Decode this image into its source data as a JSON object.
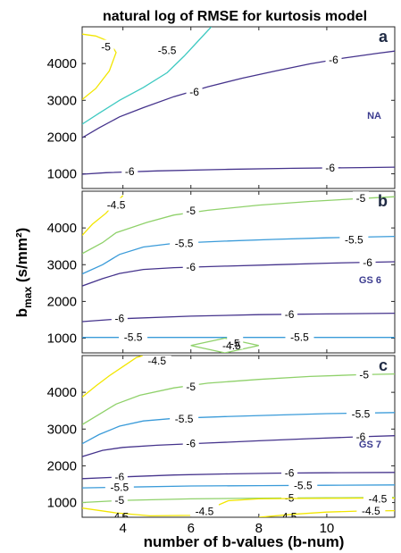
{
  "title": "natural log of RMSE for kurtosis model",
  "xlabel": "number of b-values (b-num)",
  "ylabel_main": "b",
  "ylabel_sub": "max",
  "ylabel_rest": " (s/mm²)",
  "colors": {
    "-6": "#45338c",
    "-5.5": "#3a9bd9",
    "-5": "#8fd16a",
    "-4.5": "#f2e600",
    "-5.5_teal": "#3ec9c1",
    "panel_tag": "#3b3b8f"
  },
  "chart_data": [
    {
      "type": "contour",
      "panel": "a",
      "tag": "NA",
      "xlim": [
        2.8,
        12
      ],
      "ylim": [
        600,
        5000
      ],
      "xticks": [
        4,
        6,
        8,
        10
      ],
      "yticks": [
        1000,
        2000,
        3000,
        4000
      ],
      "contours": [
        {
          "level": "-6",
          "color_key": "-6",
          "points": [
            [
              2.8,
              990
            ],
            [
              3.5,
              1030
            ],
            [
              5,
              1080
            ],
            [
              7,
              1120
            ],
            [
              9,
              1150
            ],
            [
              11,
              1170
            ],
            [
              12,
              1180
            ]
          ],
          "labels": [
            [
              4.2,
              1060
            ],
            [
              10.1,
              1160
            ]
          ]
        },
        {
          "level": "-6",
          "color_key": "-6",
          "points": [
            [
              2.8,
              1980
            ],
            [
              3.3,
              2250
            ],
            [
              3.9,
              2550
            ],
            [
              4.6,
              2800
            ],
            [
              5.5,
              3100
            ],
            [
              6.5,
              3370
            ],
            [
              7.5,
              3600
            ],
            [
              8.5,
              3800
            ],
            [
              9.5,
              3990
            ],
            [
              10.5,
              4150
            ],
            [
              11.5,
              4280
            ],
            [
              12,
              4340
            ]
          ],
          "labels": [
            [
              6.1,
              3220
            ],
            [
              10.2,
              4100
            ]
          ]
        },
        {
          "level": "-5.5",
          "color_key": "-5.5_teal",
          "points": [
            [
              2.8,
              2350
            ],
            [
              3.3,
              2650
            ],
            [
              3.9,
              3000
            ],
            [
              4.6,
              3350
            ],
            [
              5.3,
              3750
            ],
            [
              5.8,
              4200
            ],
            [
              6.2,
              4600
            ],
            [
              6.6,
              5000
            ]
          ],
          "labels": [
            [
              5.3,
              4350
            ]
          ]
        },
        {
          "level": "-5",
          "color_key": "-4.5",
          "points": [
            [
              2.8,
              3020
            ],
            [
              3.2,
              3320
            ],
            [
              3.6,
              3800
            ],
            [
              3.8,
              4300
            ],
            [
              3.6,
              4600
            ],
            [
              3.2,
              4750
            ],
            [
              2.8,
              4800
            ]
          ],
          "labels": [
            [
              3.5,
              4450
            ]
          ]
        }
      ]
    },
    {
      "type": "contour",
      "panel": "b",
      "tag": "GS 6",
      "xlim": [
        2.8,
        12
      ],
      "ylim": [
        600,
        5000
      ],
      "xticks": [
        4,
        6,
        8,
        10
      ],
      "yticks": [
        1000,
        2000,
        3000,
        4000
      ],
      "contours": [
        {
          "level": "-4.5",
          "color_key": "-4.5",
          "points": [
            [
              2.8,
              3800
            ],
            [
              3.1,
              4100
            ],
            [
              3.5,
              4400
            ],
            [
              3.8,
              4700
            ],
            [
              4.0,
              4880
            ]
          ],
          "labels": [
            [
              3.8,
              4620
            ]
          ]
        },
        {
          "level": "-5",
          "color_key": "-5",
          "points": [
            [
              2.8,
              3300
            ],
            [
              3.4,
              3600
            ],
            [
              3.8,
              3870
            ],
            [
              4.7,
              4150
            ],
            [
              5.5,
              4350
            ],
            [
              6.5,
              4480
            ],
            [
              8,
              4620
            ],
            [
              9.5,
              4720
            ],
            [
              11,
              4800
            ],
            [
              12,
              4850
            ]
          ],
          "labels": [
            [
              6.0,
              4470
            ],
            [
              11.0,
              4800
            ]
          ]
        },
        {
          "level": "-5.5",
          "color_key": "-5.5",
          "points": [
            [
              2.8,
              2750
            ],
            [
              3.4,
              3000
            ],
            [
              3.9,
              3280
            ],
            [
              4.6,
              3480
            ],
            [
              5.5,
              3580
            ],
            [
              7,
              3640
            ],
            [
              8.5,
              3690
            ],
            [
              10,
              3730
            ],
            [
              12,
              3770
            ]
          ],
          "labels": [
            [
              5.8,
              3580
            ],
            [
              10.8,
              3670
            ]
          ]
        },
        {
          "level": "-6",
          "color_key": "-6",
          "points": [
            [
              2.8,
              2420
            ],
            [
              3.4,
              2620
            ],
            [
              3.9,
              2760
            ],
            [
              4.6,
              2870
            ],
            [
              5.5,
              2920
            ],
            [
              7,
              2960
            ],
            [
              8.5,
              3000
            ],
            [
              10,
              3040
            ],
            [
              12,
              3080
            ]
          ],
          "labels": [
            [
              6.0,
              2930
            ],
            [
              11.2,
              3060
            ]
          ]
        },
        {
          "level": "-6",
          "color_key": "-6",
          "points": [
            [
              2.8,
              1450
            ],
            [
              4,
              1530
            ],
            [
              6,
              1600
            ],
            [
              8,
              1640
            ],
            [
              10,
              1660
            ],
            [
              12,
              1680
            ]
          ],
          "labels": [
            [
              3.9,
              1530
            ],
            [
              8.9,
              1640
            ]
          ]
        },
        {
          "level": "-5.5",
          "color_key": "-5.5",
          "points": [
            [
              2.8,
              1020
            ],
            [
              4,
              1020
            ],
            [
              6,
              1020
            ],
            [
              8,
              1020
            ],
            [
              10,
              1020
            ],
            [
              12,
              1020
            ]
          ],
          "labels": [
            [
              4.3,
              1020
            ],
            [
              9.2,
              1020
            ]
          ]
        },
        {
          "level": "-5",
          "color_key": "-5",
          "closed": true,
          "points": [
            [
              6.0,
              800
            ],
            [
              7.0,
              1000
            ],
            [
              8.0,
              800
            ],
            [
              7.0,
              600
            ]
          ],
          "labels": [
            [
              7.3,
              850
            ]
          ]
        }
      ],
      "extra_labels": [
        {
          "text": "-4.5",
          "at": [
            7.2,
            800
          ]
        }
      ]
    },
    {
      "type": "contour",
      "panel": "c",
      "tag": "GS 7",
      "xlim": [
        2.8,
        12
      ],
      "ylim": [
        600,
        5000
      ],
      "xticks": [
        4,
        6,
        8,
        10
      ],
      "yticks": [
        1000,
        2000,
        3000,
        4000
      ],
      "contours": [
        {
          "level": "-4.5",
          "color_key": "-4.5",
          "points": [
            [
              2.8,
              3870
            ],
            [
              3.2,
              4170
            ],
            [
              3.6,
              4450
            ],
            [
              4.0,
              4700
            ],
            [
              4.4,
              4950
            ],
            [
              4.6,
              5000
            ]
          ],
          "labels": [
            [
              5.0,
              4850
            ]
          ]
        },
        {
          "level": "-5",
          "color_key": "-5",
          "points": [
            [
              2.8,
              3120
            ],
            [
              3.3,
              3400
            ],
            [
              3.8,
              3680
            ],
            [
              4.5,
              3920
            ],
            [
              5.5,
              4120
            ],
            [
              6.5,
              4250
            ],
            [
              8,
              4350
            ],
            [
              9.5,
              4430
            ],
            [
              11,
              4480
            ],
            [
              12,
              4500
            ]
          ],
          "labels": [
            [
              6.0,
              4150
            ],
            [
              11.1,
              4480
            ]
          ]
        },
        {
          "level": "-5.5",
          "color_key": "-5.5",
          "points": [
            [
              2.8,
              2600
            ],
            [
              3.3,
              2850
            ],
            [
              3.9,
              3080
            ],
            [
              4.6,
              3220
            ],
            [
              5.5,
              3290
            ],
            [
              7,
              3340
            ],
            [
              8.5,
              3380
            ],
            [
              10,
              3420
            ],
            [
              12,
              3450
            ]
          ],
          "labels": [
            [
              5.8,
              3280
            ],
            [
              11.0,
              3410
            ]
          ]
        },
        {
          "level": "-6",
          "color_key": "-6",
          "points": [
            [
              2.8,
              2250
            ],
            [
              3.4,
              2420
            ],
            [
              4,
              2500
            ],
            [
              5,
              2560
            ],
            [
              6.5,
              2620
            ],
            [
              8,
              2680
            ],
            [
              9.5,
              2740
            ],
            [
              11,
              2790
            ],
            [
              12,
              2820
            ]
          ],
          "labels": [
            [
              6.0,
              2600
            ],
            [
              11.0,
              2790
            ]
          ]
        },
        {
          "level": "-6",
          "color_key": "-6",
          "points": [
            [
              2.8,
              1650
            ],
            [
              4,
              1700
            ],
            [
              5.5,
              1750
            ],
            [
              7,
              1780
            ],
            [
              8.5,
              1800
            ],
            [
              10,
              1810
            ],
            [
              12,
              1820
            ]
          ],
          "labels": [
            [
              3.9,
              1690
            ],
            [
              8.9,
              1800
            ]
          ]
        },
        {
          "level": "-5.5",
          "color_key": "-5.5",
          "points": [
            [
              2.8,
              1400
            ],
            [
              4,
              1420
            ],
            [
              6,
              1450
            ],
            [
              8,
              1460
            ],
            [
              10,
              1470
            ],
            [
              12,
              1480
            ]
          ],
          "labels": [
            [
              3.9,
              1420
            ],
            [
              9.3,
              1460
            ]
          ]
        },
        {
          "level": "-5",
          "color_key": "-5",
          "points": [
            [
              2.8,
              1000
            ],
            [
              4,
              1060
            ],
            [
              6,
              1100
            ],
            [
              8,
              1120
            ],
            [
              10,
              1130
            ],
            [
              12,
              1140
            ]
          ],
          "labels": [
            [
              3.9,
              1060
            ],
            [
              8.9,
              1120
            ]
          ]
        },
        {
          "level": "-4.5",
          "color_key": "-4.5",
          "points": [
            [
              2.8,
              850
            ],
            [
              3.8,
              720
            ],
            [
              4.8,
              640
            ],
            [
              6.0,
              650
            ],
            [
              6.6,
              850
            ],
            [
              7.1,
              1050
            ],
            [
              8,
              1100
            ],
            [
              9,
              1110
            ],
            [
              11,
              1120
            ],
            [
              12,
              1120
            ]
          ],
          "labels": [
            [
              6.4,
              760
            ],
            [
              11.5,
              1100
            ]
          ]
        },
        {
          "level": "-4.5",
          "color_key": "-4.5",
          "points": [
            [
              8.0,
              600
            ],
            [
              9,
              680
            ],
            [
              10,
              740
            ],
            [
              11,
              770
            ],
            [
              12,
              780
            ]
          ],
          "labels": [
            [
              11.3,
              770
            ]
          ]
        }
      ],
      "extra_labels": [
        {
          "text": "-4.5",
          "at": [
            3.9,
            610
          ]
        },
        {
          "text": "4.5",
          "at": [
            8.9,
            610
          ]
        }
      ]
    }
  ]
}
